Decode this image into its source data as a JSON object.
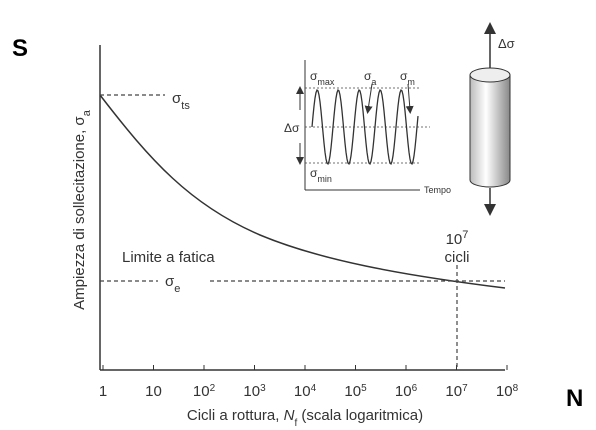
{
  "corner_labels": {
    "s": "S",
    "n": "N"
  },
  "y_axis_title": {
    "text": "Ampiezza di sollecitazione, ",
    "symbol": "σ",
    "sub": "a"
  },
  "x_axis_title": {
    "text": "Cicli a rottura, ",
    "symbol": "N",
    "sub": "f",
    "suffix": " (scala logaritmica)"
  },
  "x_ticks": [
    {
      "base": "1"
    },
    {
      "base": "10"
    },
    {
      "base": "10",
      "exp": "2"
    },
    {
      "base": "10",
      "exp": "3"
    },
    {
      "base": "10",
      "exp": "4"
    },
    {
      "base": "10",
      "exp": "5"
    },
    {
      "base": "10",
      "exp": "6"
    },
    {
      "base": "10",
      "exp": "7"
    },
    {
      "base": "10",
      "exp": "8"
    }
  ],
  "sigma_ts": {
    "symbol": "σ",
    "sub": "ts"
  },
  "sigma_e": {
    "symbol": "σ",
    "sub": "e"
  },
  "fatigue_limit": "Limite a fatica",
  "cycles_note": {
    "base": "10",
    "exp": "7",
    "text": "cicli"
  },
  "inset": {
    "sigma_max": {
      "symbol": "σ",
      "sub": "max"
    },
    "sigma_min": {
      "symbol": "σ",
      "sub": "min"
    },
    "sigma_a": {
      "symbol": "σ",
      "sub": "a"
    },
    "sigma_m": {
      "symbol": "σ",
      "sub": "m"
    },
    "delta_sigma": "Δσ",
    "time": "Tempo"
  },
  "specimen_delta": "Δσ"
}
